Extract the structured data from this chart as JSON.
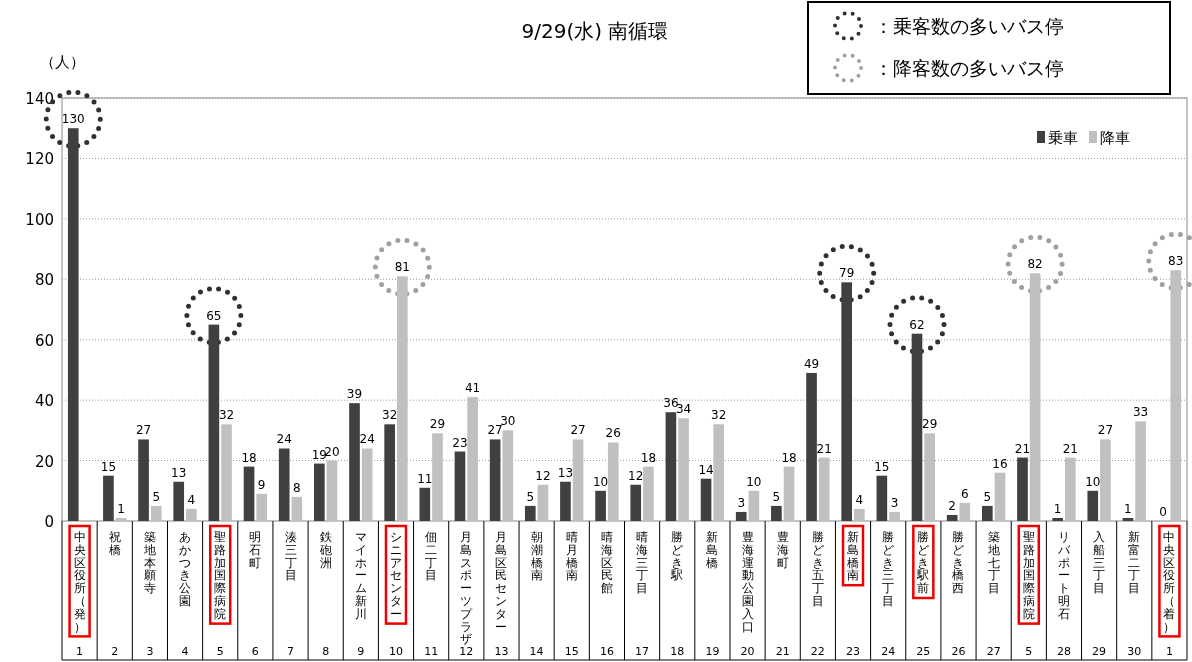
{
  "chart_data": {
    "type": "bar",
    "title": "9/29(水) 南循環",
    "ylabel": "（人）",
    "categories": [
      "中央区役所（発）",
      "祝橋",
      "築地本願寺",
      "あかつき公園",
      "聖路加国際病院",
      "明石町",
      "湊三丁目",
      "鉄砲洲",
      "マイホーム新川",
      "シニアセンター",
      "佃二丁目",
      "月島スポーツプラザ",
      "月島区民センター",
      "朝潮橋南",
      "晴月橋南",
      "晴海区民館",
      "晴海三丁目",
      "勝どき駅",
      "新島橋",
      "豊海運動公園入口",
      "豊海町",
      "勝どき五丁目",
      "新島橋南",
      "勝どき三丁目",
      "勝どき駅前",
      "勝どき橋西",
      "築地七丁目",
      "聖路加国際病院",
      "リバポート明石",
      "入船三丁目",
      "新富二丁目",
      "中央区役所（着）"
    ],
    "annotations": [
      "1",
      "2",
      "3",
      "4",
      "5",
      "6",
      "7",
      "8",
      "9",
      "10",
      "11",
      "12",
      "13",
      "14",
      "15",
      "16",
      "17",
      "18",
      "19",
      "20",
      "21",
      "22",
      "23",
      "24",
      "25",
      "26",
      "27",
      "5",
      "28",
      "29",
      "30",
      "1"
    ],
    "series": [
      {
        "name": "乗車",
        "color": "#404040",
        "values": [
          130,
          15,
          27,
          13,
          65,
          18,
          24,
          19,
          39,
          32,
          11,
          23,
          27,
          5,
          13,
          10,
          12,
          36,
          14,
          3,
          5,
          49,
          79,
          15,
          62,
          2,
          5,
          21,
          1,
          10,
          1,
          0
        ],
        "value_labels": [
          "130",
          "15",
          "27",
          "13",
          "65",
          "18",
          "24",
          "19",
          "39",
          "32",
          "11",
          "23",
          "27",
          "5",
          "13",
          "10",
          "12",
          "36",
          "14",
          "3",
          "5",
          "49",
          "79",
          "15",
          "62",
          "2",
          "5",
          "21",
          "1",
          "10",
          "1",
          "0"
        ]
      },
      {
        "name": "降車",
        "color": "#c0c0c0",
        "values": [
          null,
          1,
          5,
          4,
          32,
          9,
          8,
          20,
          24,
          81,
          29,
          41,
          30,
          12,
          27,
          26,
          18,
          34,
          32,
          10,
          18,
          21,
          4,
          3,
          29,
          6,
          16,
          82,
          21,
          27,
          33,
          83
        ],
        "value_labels": [
          null,
          "1",
          "5",
          "4",
          "32",
          "9",
          "8",
          "20",
          "24",
          "81",
          "29",
          "41",
          "30",
          "12",
          "27",
          "26",
          "18",
          "34",
          "32",
          "10",
          "18",
          "21",
          "4",
          "3",
          "29",
          "6",
          "16",
          "82",
          "21",
          "27",
          "33",
          "83"
        ]
      },
      {
        "name": "：乗客数の多いバス停",
        "type": "scatter",
        "color": "#303030",
        "values": [
          133,
          null,
          null,
          null,
          68,
          null,
          null,
          null,
          null,
          null,
          null,
          null,
          null,
          null,
          null,
          null,
          null,
          null,
          null,
          null,
          null,
          null,
          82,
          null,
          65,
          null,
          null,
          null,
          null,
          null,
          null,
          null
        ]
      },
      {
        "name": "：降客数の多いバス停",
        "type": "scatter",
        "color": "#a0a0a0",
        "values": [
          null,
          null,
          null,
          null,
          null,
          null,
          null,
          null,
          null,
          84,
          null,
          null,
          null,
          null,
          null,
          null,
          null,
          null,
          null,
          null,
          null,
          null,
          null,
          null,
          null,
          null,
          null,
          85,
          null,
          null,
          null,
          86
        ]
      }
    ],
    "ylim": [
      0,
      140
    ],
    "yticks": [
      0,
      20,
      40,
      60,
      80,
      100,
      120,
      140
    ],
    "grid": "y",
    "legend": "top right"
  }
}
